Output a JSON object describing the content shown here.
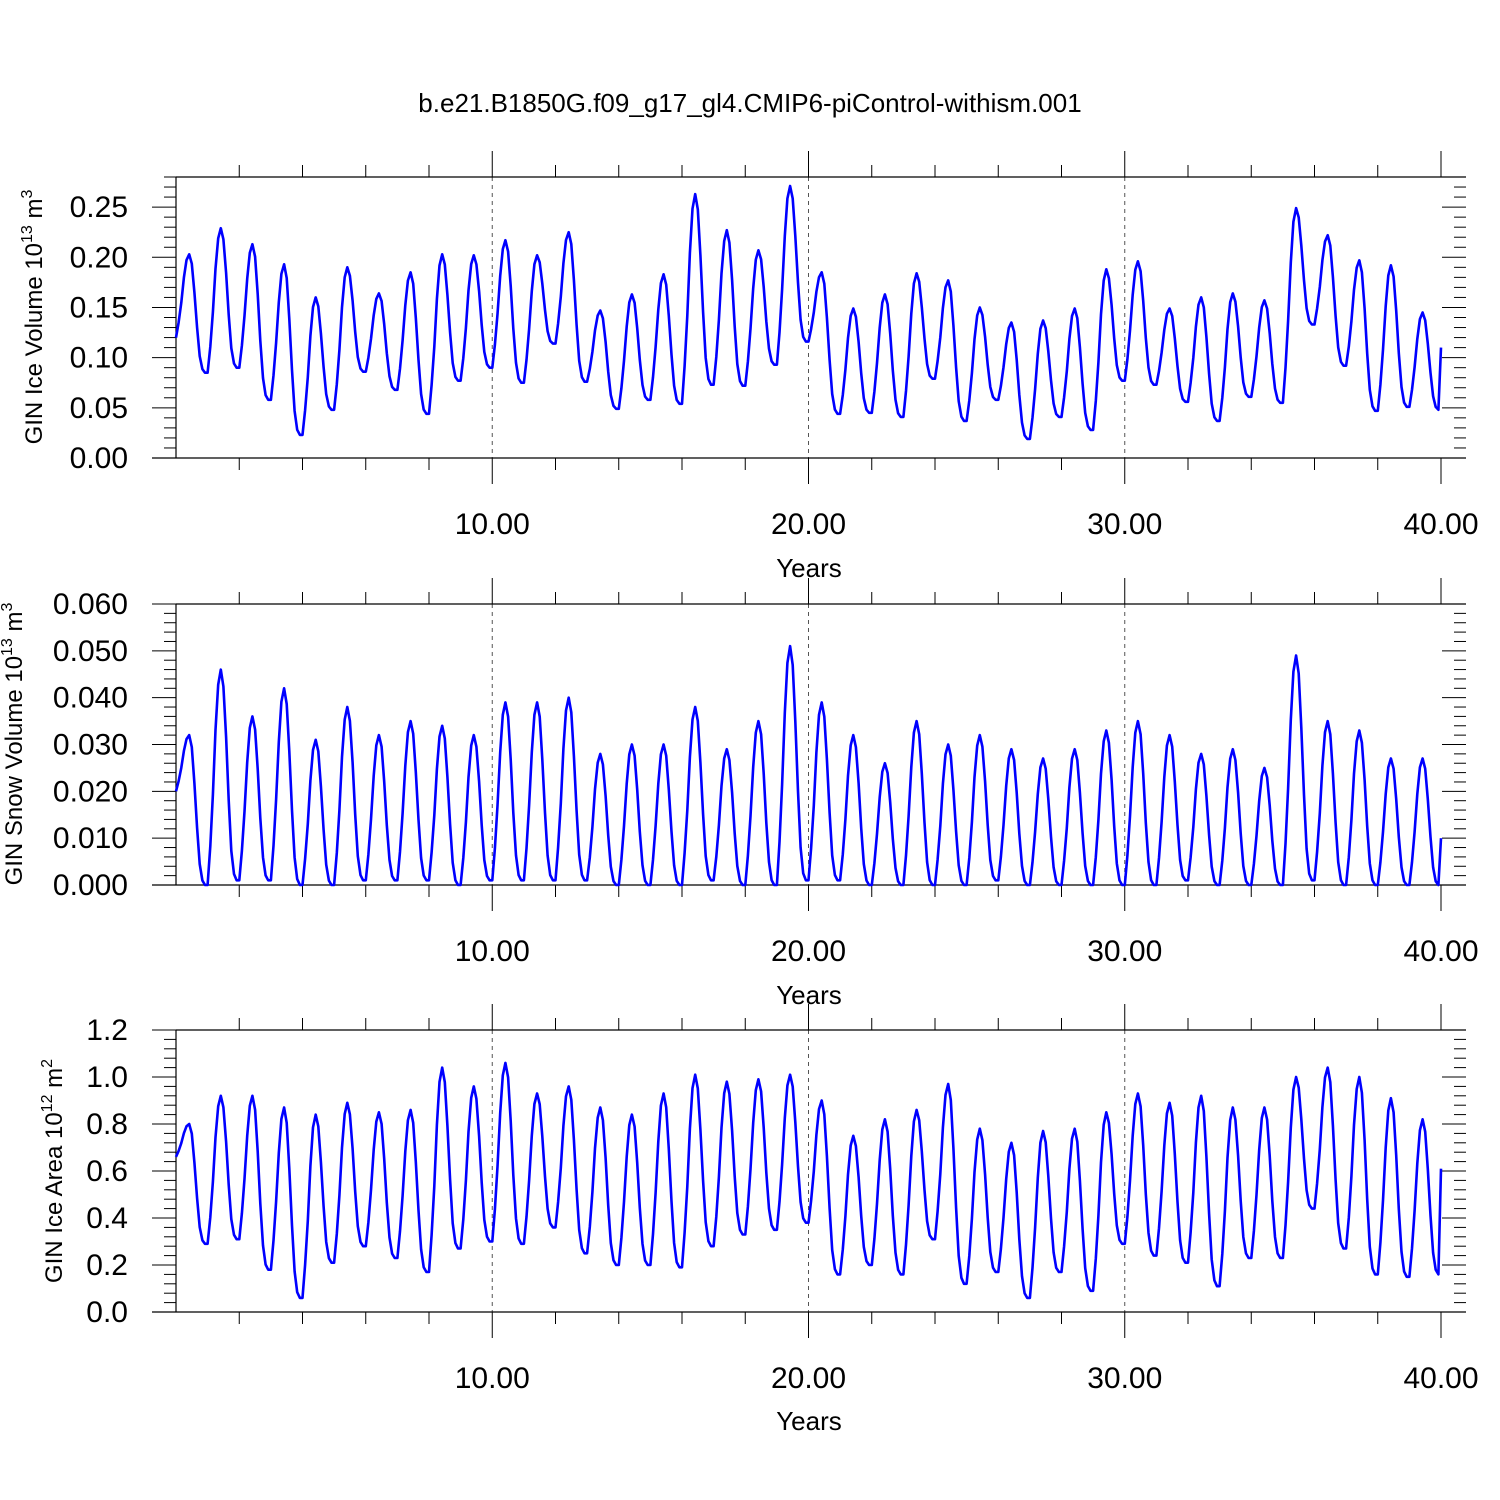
{
  "title": "b.e21.B1850G.f09_g17_gl4.CMIP6-piControl-withism.001",
  "line_color": "#0000ff",
  "chart_data": [
    {
      "type": "line",
      "title": "b.e21.B1850G.f09_g17_gl4.CMIP6-piControl-withism.001",
      "xlabel": "Years",
      "ylabel": "GIN Ice Volume 10",
      "ylabel_exp": "13",
      "ylabel_unit": " m",
      "ylabel_unit_exp": "3",
      "xlim": [
        0,
        40
      ],
      "ylim": [
        0,
        0.28
      ],
      "xticks": [
        10,
        20,
        30,
        40
      ],
      "xtick_labels": [
        "10.00",
        "20.00",
        "30.00",
        "40.00"
      ],
      "yticks": [
        0,
        0.05,
        0.1,
        0.15,
        0.2,
        0.25
      ],
      "ytick_labels": [
        "0.00",
        "0.05",
        "0.10",
        "0.15",
        "0.20",
        "0.25"
      ],
      "grid": "dashed vertical lines at x ticks",
      "peaks": [
        0.203,
        0.229,
        0.213,
        0.193,
        0.16,
        0.19,
        0.164,
        0.185,
        0.203,
        0.202,
        0.217,
        0.202,
        0.225,
        0.147,
        0.163,
        0.183,
        0.263,
        0.227,
        0.207,
        0.271,
        0.185,
        0.149,
        0.163,
        0.184,
        0.177,
        0.15,
        0.135,
        0.137,
        0.149,
        0.188,
        0.196,
        0.149,
        0.16,
        0.164,
        0.157,
        0.249,
        0.222,
        0.197,
        0.192,
        0.145
      ],
      "troughs": [
        0.12,
        0.085,
        0.09,
        0.058,
        0.023,
        0.048,
        0.086,
        0.068,
        0.044,
        0.077,
        0.09,
        0.075,
        0.114,
        0.076,
        0.049,
        0.058,
        0.054,
        0.073,
        0.072,
        0.093,
        0.116,
        0.044,
        0.045,
        0.041,
        0.079,
        0.037,
        0.058,
        0.019,
        0.041,
        0.028,
        0.077,
        0.073,
        0.056,
        0.037,
        0.061,
        0.055,
        0.133,
        0.092,
        0.047,
        0.051,
        0.048
      ],
      "end_value": 0.11
    },
    {
      "type": "line",
      "xlabel": "Years",
      "ylabel": "GIN Snow Volume 10",
      "ylabel_exp": "13",
      "ylabel_unit": " m",
      "ylabel_unit_exp": "3",
      "xlim": [
        0,
        40
      ],
      "ylim": [
        0,
        0.06
      ],
      "xticks": [
        10,
        20,
        30,
        40
      ],
      "xtick_labels": [
        "10.00",
        "20.00",
        "30.00",
        "40.00"
      ],
      "yticks": [
        0,
        0.01,
        0.02,
        0.03,
        0.04,
        0.05,
        0.06
      ],
      "ytick_labels": [
        "0.000",
        "0.010",
        "0.020",
        "0.030",
        "0.040",
        "0.050",
        "0.060"
      ],
      "grid": "dashed vertical lines at x ticks",
      "peaks": [
        0.032,
        0.046,
        0.036,
        0.042,
        0.031,
        0.038,
        0.032,
        0.035,
        0.034,
        0.032,
        0.039,
        0.039,
        0.04,
        0.028,
        0.03,
        0.03,
        0.038,
        0.029,
        0.035,
        0.051,
        0.039,
        0.032,
        0.026,
        0.035,
        0.03,
        0.032,
        0.029,
        0.027,
        0.029,
        0.033,
        0.035,
        0.032,
        0.028,
        0.029,
        0.025,
        0.049,
        0.035,
        0.033,
        0.027,
        0.027
      ],
      "troughs": [
        0.02,
        0.0,
        0.001,
        0.001,
        0.0,
        0.0,
        0.001,
        0.001,
        0.001,
        0.0,
        0.001,
        0.001,
        0.001,
        0.001,
        0.0,
        0.0,
        0.0,
        0.001,
        0.0,
        0.0,
        0.001,
        0.001,
        0.0,
        0.0,
        0.0,
        0.0,
        0.001,
        0.0,
        0.0,
        0.0,
        0.0,
        0.0,
        0.001,
        0.0,
        0.0,
        0.0,
        0.001,
        0.0,
        0.0,
        0.0,
        0.0
      ],
      "end_value": 0.01
    },
    {
      "type": "line",
      "xlabel": "Years",
      "ylabel": "GIN Ice Area 10",
      "ylabel_exp": "12",
      "ylabel_unit": " m",
      "ylabel_unit_exp": "2",
      "xlim": [
        0,
        40
      ],
      "ylim": [
        0,
        1.2
      ],
      "xticks": [
        10,
        20,
        30,
        40
      ],
      "xtick_labels": [
        "10.00",
        "20.00",
        "30.00",
        "40.00"
      ],
      "yticks": [
        0,
        0.2,
        0.4,
        0.6,
        0.8,
        1.0,
        1.2
      ],
      "ytick_labels": [
        "0.0",
        "0.2",
        "0.4",
        "0.6",
        "0.8",
        "1.0",
        "1.2"
      ],
      "grid": "dashed vertical lines at x ticks",
      "peaks": [
        0.8,
        0.92,
        0.92,
        0.87,
        0.84,
        0.89,
        0.85,
        0.86,
        1.04,
        0.96,
        1.06,
        0.93,
        0.96,
        0.87,
        0.84,
        0.93,
        1.01,
        0.98,
        0.99,
        1.01,
        0.9,
        0.75,
        0.82,
        0.86,
        0.97,
        0.78,
        0.72,
        0.77,
        0.78,
        0.85,
        0.93,
        0.89,
        0.92,
        0.87,
        0.87,
        1.0,
        1.04,
        1.0,
        0.91,
        0.82
      ],
      "troughs": [
        0.66,
        0.29,
        0.31,
        0.18,
        0.06,
        0.21,
        0.28,
        0.23,
        0.17,
        0.27,
        0.3,
        0.29,
        0.36,
        0.25,
        0.2,
        0.2,
        0.19,
        0.28,
        0.33,
        0.35,
        0.38,
        0.16,
        0.2,
        0.16,
        0.31,
        0.12,
        0.17,
        0.06,
        0.17,
        0.09,
        0.29,
        0.24,
        0.21,
        0.11,
        0.23,
        0.23,
        0.44,
        0.27,
        0.16,
        0.15,
        0.16
      ],
      "end_value": 0.61
    }
  ]
}
